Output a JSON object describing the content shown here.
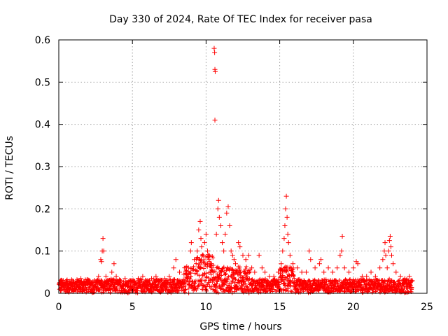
{
  "chart_data": {
    "type": "scatter",
    "title": "Day 330 of 2024, Rate Of TEC Index for receiver pasa",
    "xlabel": "GPS time / hours",
    "ylabel": "ROTI / TECUs",
    "xlim": [
      0,
      25
    ],
    "ylim": [
      0,
      0.6
    ],
    "xticks": [
      0,
      5,
      10,
      15,
      20,
      25
    ],
    "xtick_labels": [
      "0",
      "5",
      "10",
      "15",
      "20",
      "25"
    ],
    "yticks": [
      0,
      0.1,
      0.2,
      0.3,
      0.4,
      0.5,
      0.6
    ],
    "ytick_labels": [
      "0",
      "0.1",
      "0.2",
      "0.3",
      "0.4",
      "0.5",
      "0.6"
    ],
    "grid": true,
    "marker": "+",
    "series": [
      {
        "name": "ROTI",
        "color": "#ff0000",
        "points": [
          [
            0.1,
            0.02
          ],
          [
            0.3,
            0.03
          ],
          [
            0.5,
            0.025
          ],
          [
            0.7,
            0.015
          ],
          [
            0.9,
            0.03
          ],
          [
            1.1,
            0.02
          ],
          [
            1.3,
            0.03
          ],
          [
            1.5,
            0.035
          ],
          [
            1.7,
            0.02
          ],
          [
            1.9,
            0.025
          ],
          [
            2.1,
            0.03
          ],
          [
            2.3,
            0.02
          ],
          [
            2.5,
            0.025
          ],
          [
            2.7,
            0.04
          ],
          [
            2.85,
            0.08
          ],
          [
            2.9,
            0.075
          ],
          [
            2.95,
            0.1
          ],
          [
            3.0,
            0.13
          ],
          [
            3.05,
            0.1
          ],
          [
            3.2,
            0.04
          ],
          [
            3.4,
            0.03
          ],
          [
            3.6,
            0.05
          ],
          [
            3.75,
            0.07
          ],
          [
            3.9,
            0.04
          ],
          [
            4.2,
            0.03
          ],
          [
            4.5,
            0.035
          ],
          [
            4.8,
            0.03
          ],
          [
            5.1,
            0.025
          ],
          [
            5.4,
            0.035
          ],
          [
            5.7,
            0.04
          ],
          [
            6.0,
            0.03
          ],
          [
            6.3,
            0.035
          ],
          [
            6.6,
            0.04
          ],
          [
            6.9,
            0.03
          ],
          [
            7.2,
            0.035
          ],
          [
            7.5,
            0.04
          ],
          [
            7.8,
            0.06
          ],
          [
            7.95,
            0.08
          ],
          [
            8.2,
            0.05
          ],
          [
            8.5,
            0.045
          ],
          [
            8.8,
            0.06
          ],
          [
            8.95,
            0.1
          ],
          [
            9.0,
            0.12
          ],
          [
            9.2,
            0.08
          ],
          [
            9.4,
            0.1
          ],
          [
            9.5,
            0.15
          ],
          [
            9.6,
            0.17
          ],
          [
            9.65,
            0.13
          ],
          [
            9.7,
            0.11
          ],
          [
            9.8,
            0.09
          ],
          [
            9.9,
            0.12
          ],
          [
            10.0,
            0.14
          ],
          [
            10.1,
            0.1
          ],
          [
            10.2,
            0.08
          ],
          [
            10.3,
            0.07
          ],
          [
            10.4,
            0.06
          ],
          [
            10.5,
            0.05
          ],
          [
            10.55,
            0.58
          ],
          [
            10.58,
            0.57
          ],
          [
            10.6,
            0.53
          ],
          [
            10.62,
            0.525
          ],
          [
            10.6,
            0.41
          ],
          [
            10.7,
            0.14
          ],
          [
            10.8,
            0.2
          ],
          [
            10.85,
            0.22
          ],
          [
            10.9,
            0.18
          ],
          [
            11.0,
            0.16
          ],
          [
            11.1,
            0.12
          ],
          [
            11.2,
            0.1
          ],
          [
            11.3,
            0.14
          ],
          [
            11.4,
            0.19
          ],
          [
            11.5,
            0.205
          ],
          [
            11.6,
            0.16
          ],
          [
            11.7,
            0.1
          ],
          [
            11.8,
            0.09
          ],
          [
            11.9,
            0.08
          ],
          [
            12.0,
            0.07
          ],
          [
            12.2,
            0.12
          ],
          [
            12.3,
            0.11
          ],
          [
            12.5,
            0.09
          ],
          [
            12.7,
            0.08
          ],
          [
            12.9,
            0.09
          ],
          [
            13.1,
            0.06
          ],
          [
            13.3,
            0.05
          ],
          [
            13.6,
            0.09
          ],
          [
            13.8,
            0.06
          ],
          [
            14.0,
            0.05
          ],
          [
            14.3,
            0.04
          ],
          [
            14.6,
            0.04
          ],
          [
            14.9,
            0.05
          ],
          [
            15.1,
            0.07
          ],
          [
            15.2,
            0.1
          ],
          [
            15.3,
            0.13
          ],
          [
            15.35,
            0.16
          ],
          [
            15.4,
            0.2
          ],
          [
            15.45,
            0.23
          ],
          [
            15.5,
            0.18
          ],
          [
            15.55,
            0.14
          ],
          [
            15.6,
            0.12
          ],
          [
            15.7,
            0.09
          ],
          [
            15.9,
            0.07
          ],
          [
            16.2,
            0.06
          ],
          [
            16.5,
            0.05
          ],
          [
            16.8,
            0.05
          ],
          [
            17.0,
            0.1
          ],
          [
            17.1,
            0.08
          ],
          [
            17.4,
            0.06
          ],
          [
            17.7,
            0.07
          ],
          [
            17.8,
            0.08
          ],
          [
            18.0,
            0.05
          ],
          [
            18.3,
            0.06
          ],
          [
            18.6,
            0.05
          ],
          [
            18.9,
            0.06
          ],
          [
            19.1,
            0.09
          ],
          [
            19.2,
            0.1
          ],
          [
            19.25,
            0.135
          ],
          [
            19.4,
            0.06
          ],
          [
            19.7,
            0.05
          ],
          [
            20.0,
            0.06
          ],
          [
            20.2,
            0.075
          ],
          [
            20.3,
            0.07
          ],
          [
            20.6,
            0.04
          ],
          [
            20.9,
            0.04
          ],
          [
            21.2,
            0.05
          ],
          [
            21.5,
            0.04
          ],
          [
            21.8,
            0.06
          ],
          [
            22.0,
            0.08
          ],
          [
            22.1,
            0.1
          ],
          [
            22.15,
            0.12
          ],
          [
            22.2,
            0.09
          ],
          [
            22.3,
            0.06
          ],
          [
            22.4,
            0.1
          ],
          [
            22.45,
            0.125
          ],
          [
            22.5,
            0.135
          ],
          [
            22.55,
            0.11
          ],
          [
            22.6,
            0.09
          ],
          [
            22.7,
            0.07
          ],
          [
            22.9,
            0.05
          ],
          [
            23.2,
            0.04
          ],
          [
            23.5,
            0.035
          ],
          [
            23.8,
            0.04
          ],
          [
            24.0,
            0.03
          ]
        ]
      }
    ]
  }
}
